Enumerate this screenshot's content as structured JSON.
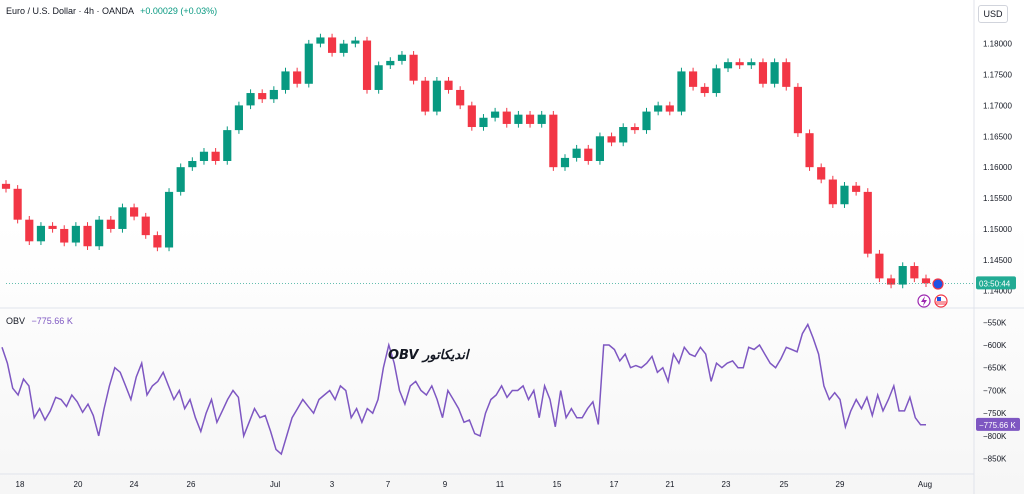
{
  "header": {
    "symbol": "Euro / U.S. Dollar · 4h · OANDA",
    "change": "+0.00029 (+0.03%)"
  },
  "currency_button": "USD",
  "price_axis": {
    "ticks": [
      "1.18000",
      "1.17500",
      "1.17000",
      "1.16500",
      "1.16000",
      "1.15500",
      "1.15000",
      "1.14500",
      "1.14000"
    ],
    "countdown": "03:50:44"
  },
  "obv_pane": {
    "label": "OBV",
    "value": "−775.66 K",
    "axis_ticks": [
      "−550K",
      "−600K",
      "−650K",
      "−700K",
      "−750K",
      "−800K",
      "−850K"
    ],
    "current_tag": "−775.66 K",
    "annotation": "OBV اندیکاتور"
  },
  "time_axis": {
    "ticks": [
      "18",
      "20",
      "24",
      "26",
      "Jul",
      "3",
      "7",
      "9",
      "11",
      "15",
      "17",
      "21",
      "23",
      "25",
      "29",
      "Aug"
    ]
  },
  "colors": {
    "up": "#089981",
    "down": "#f23645",
    "obv": "#7e57c2",
    "countdown_bg": "#22ab94"
  },
  "chart_data": [
    {
      "type": "candlestick",
      "title": "Euro / U.S. Dollar · 4h · OANDA",
      "ylabel": "USD",
      "ylim": [
        1.1385,
        1.1835
      ],
      "x_ticks": [
        "18",
        "20",
        "24",
        "26",
        "Jul",
        "3",
        "7",
        "9",
        "11",
        "15",
        "17",
        "21",
        "23",
        "25",
        "29",
        "Aug"
      ],
      "close_series": [
        1.1565,
        1.1515,
        1.148,
        1.1505,
        1.15,
        1.1478,
        1.1505,
        1.1472,
        1.1515,
        1.15,
        1.1535,
        1.152,
        1.149,
        1.147,
        1.156,
        1.16,
        1.161,
        1.1625,
        1.161,
        1.166,
        1.17,
        1.172,
        1.171,
        1.1725,
        1.1755,
        1.1735,
        1.18,
        1.181,
        1.1785,
        1.18,
        1.1805,
        1.1725,
        1.1765,
        1.1772,
        1.1782,
        1.174,
        1.169,
        1.174,
        1.1725,
        1.17,
        1.1665,
        1.168,
        1.169,
        1.167,
        1.1685,
        1.167,
        1.1685,
        1.16,
        1.1615,
        1.163,
        1.161,
        1.165,
        1.164,
        1.1665,
        1.166,
        1.169,
        1.17,
        1.169,
        1.1755,
        1.173,
        1.172,
        1.176,
        1.177,
        1.1765,
        1.177,
        1.1735,
        1.177,
        1.173,
        1.1655,
        1.16,
        1.158,
        1.154,
        1.157,
        1.156,
        1.146,
        1.142,
        1.141,
        1.144,
        1.142,
        1.1412
      ],
      "last_close": 1.1412
    },
    {
      "type": "line",
      "name": "OBV",
      "ylim": [
        -875,
        -545
      ],
      "values": [
        -605,
        -640,
        -695,
        -710,
        -675,
        -690,
        -760,
        -740,
        -765,
        -745,
        -715,
        -720,
        -735,
        -710,
        -725,
        -748,
        -730,
        -755,
        -800,
        -740,
        -690,
        -650,
        -660,
        -690,
        -720,
        -670,
        -640,
        -710,
        -690,
        -680,
        -660,
        -690,
        -720,
        -700,
        -740,
        -720,
        -760,
        -790,
        -750,
        -720,
        -770,
        -745,
        -720,
        -700,
        -715,
        -800,
        -770,
        -740,
        -760,
        -755,
        -790,
        -830,
        -840,
        -800,
        -760,
        -740,
        -720,
        -735,
        -750,
        -720,
        -710,
        -700,
        -720,
        -690,
        -700,
        -760,
        -740,
        -770,
        -740,
        -750,
        -720,
        -650,
        -600,
        -640,
        -700,
        -730,
        -690,
        -680,
        -700,
        -710,
        -690,
        -720,
        -760,
        -700,
        -720,
        -740,
        -770,
        -765,
        -795,
        -800,
        -750,
        -720,
        -710,
        -690,
        -715,
        -700,
        -700,
        -690,
        -720,
        -700,
        -760,
        -690,
        -720,
        -780,
        -700,
        -760,
        -740,
        -760,
        -760,
        -740,
        -725,
        -775,
        -600,
        -600,
        -610,
        -635,
        -620,
        -650,
        -645,
        -650,
        -640,
        -625,
        -660,
        -650,
        -680,
        -620,
        -640,
        -605,
        -620,
        -625,
        -605,
        -620,
        -680,
        -640,
        -650,
        -640,
        -635,
        -650,
        -650,
        -605,
        -610,
        -600,
        -620,
        -640,
        -650,
        -630,
        -605,
        -610,
        -615,
        -575,
        -555,
        -585,
        -620,
        -690,
        -720,
        -705,
        -720,
        -780,
        -745,
        -720,
        -740,
        -715,
        -755,
        -710,
        -745,
        -720,
        -690,
        -745,
        -745,
        -715,
        -760,
        -775.66,
        -775.66
      ]
    }
  ]
}
